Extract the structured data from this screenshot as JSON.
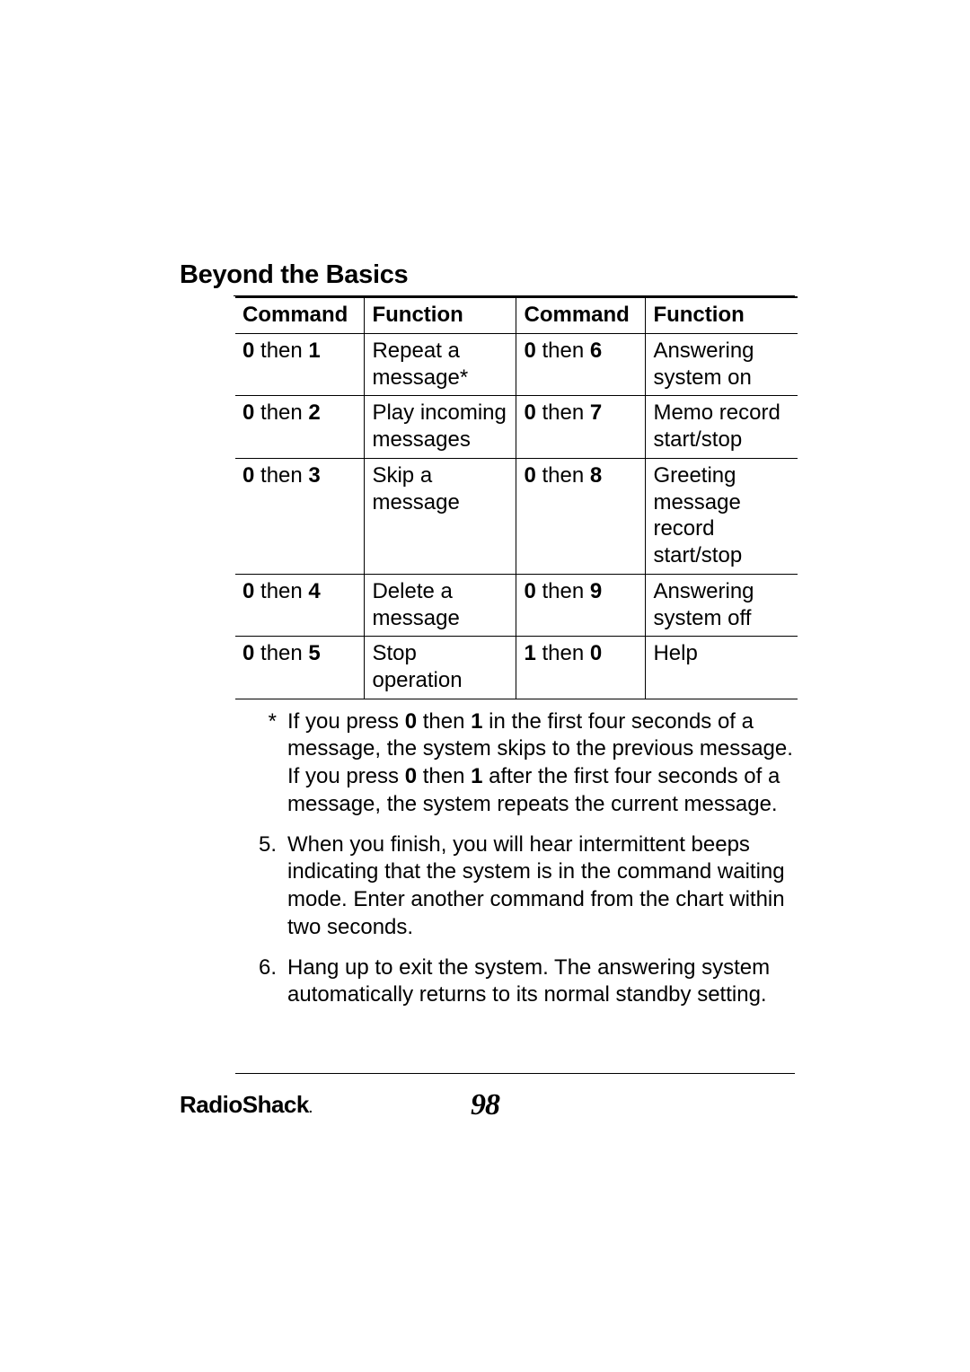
{
  "section_title": "Beyond the Basics",
  "table": {
    "headers": [
      "Command",
      "Function",
      "Command",
      "Function"
    ],
    "rows": [
      {
        "c1a": "0",
        "c1m": " then ",
        "c1b": "1",
        "f1": "Repeat a message*",
        "c2a": "0",
        "c2m": " then ",
        "c2b": "6",
        "f2": "Answering system on"
      },
      {
        "c1a": "0",
        "c1m": " then ",
        "c1b": "2",
        "f1": "Play incoming messages",
        "c2a": "0",
        "c2m": " then ",
        "c2b": "7",
        "f2": "Memo record start/stop"
      },
      {
        "c1a": "0",
        "c1m": " then ",
        "c1b": "3",
        "f1": "Skip a message",
        "c2a": "0",
        "c2m": " then ",
        "c2b": "8",
        "f2": "Greeting message record start/stop"
      },
      {
        "c1a": "0",
        "c1m": " then ",
        "c1b": "4",
        "f1": "Delete a message",
        "c2a": "0",
        "c2m": " then ",
        "c2b": "9",
        "f2": "Answering system off"
      },
      {
        "c1a": "0",
        "c1m": " then ",
        "c1b": "5",
        "f1": "Stop operation",
        "c2a": "1",
        "c2m": " then ",
        "c2b": "0",
        "f2": "Help"
      }
    ]
  },
  "notes": [
    {
      "marker": "*",
      "text_pre": "If you press ",
      "b1": "0",
      "mid1": " then ",
      "b2": "1",
      "text_mid": " in the first four seconds of a message, the system skips to the previous message. If you press ",
      "b3": "0",
      "mid2": " then ",
      "b4": "1",
      "text_post": " after the first four seconds of a message, the system repeats the current message."
    },
    {
      "marker": "5.",
      "text": "When you finish, you will hear intermittent beeps indicating that the system is in the command waiting mode. Enter another command from the chart within two seconds."
    },
    {
      "marker": "6.",
      "text": "Hang up to exit the system. The answering system automatically returns to its normal standby setting."
    }
  ],
  "footer": {
    "brand": "RadioShack",
    "page": "98"
  },
  "style": {
    "page_bg": "#ffffff",
    "text_color": "#000000",
    "border_color": "#000000",
    "title_fontsize": 29,
    "body_fontsize": 24,
    "pagenum_fontsize": 34,
    "brand_fontsize": 26
  }
}
